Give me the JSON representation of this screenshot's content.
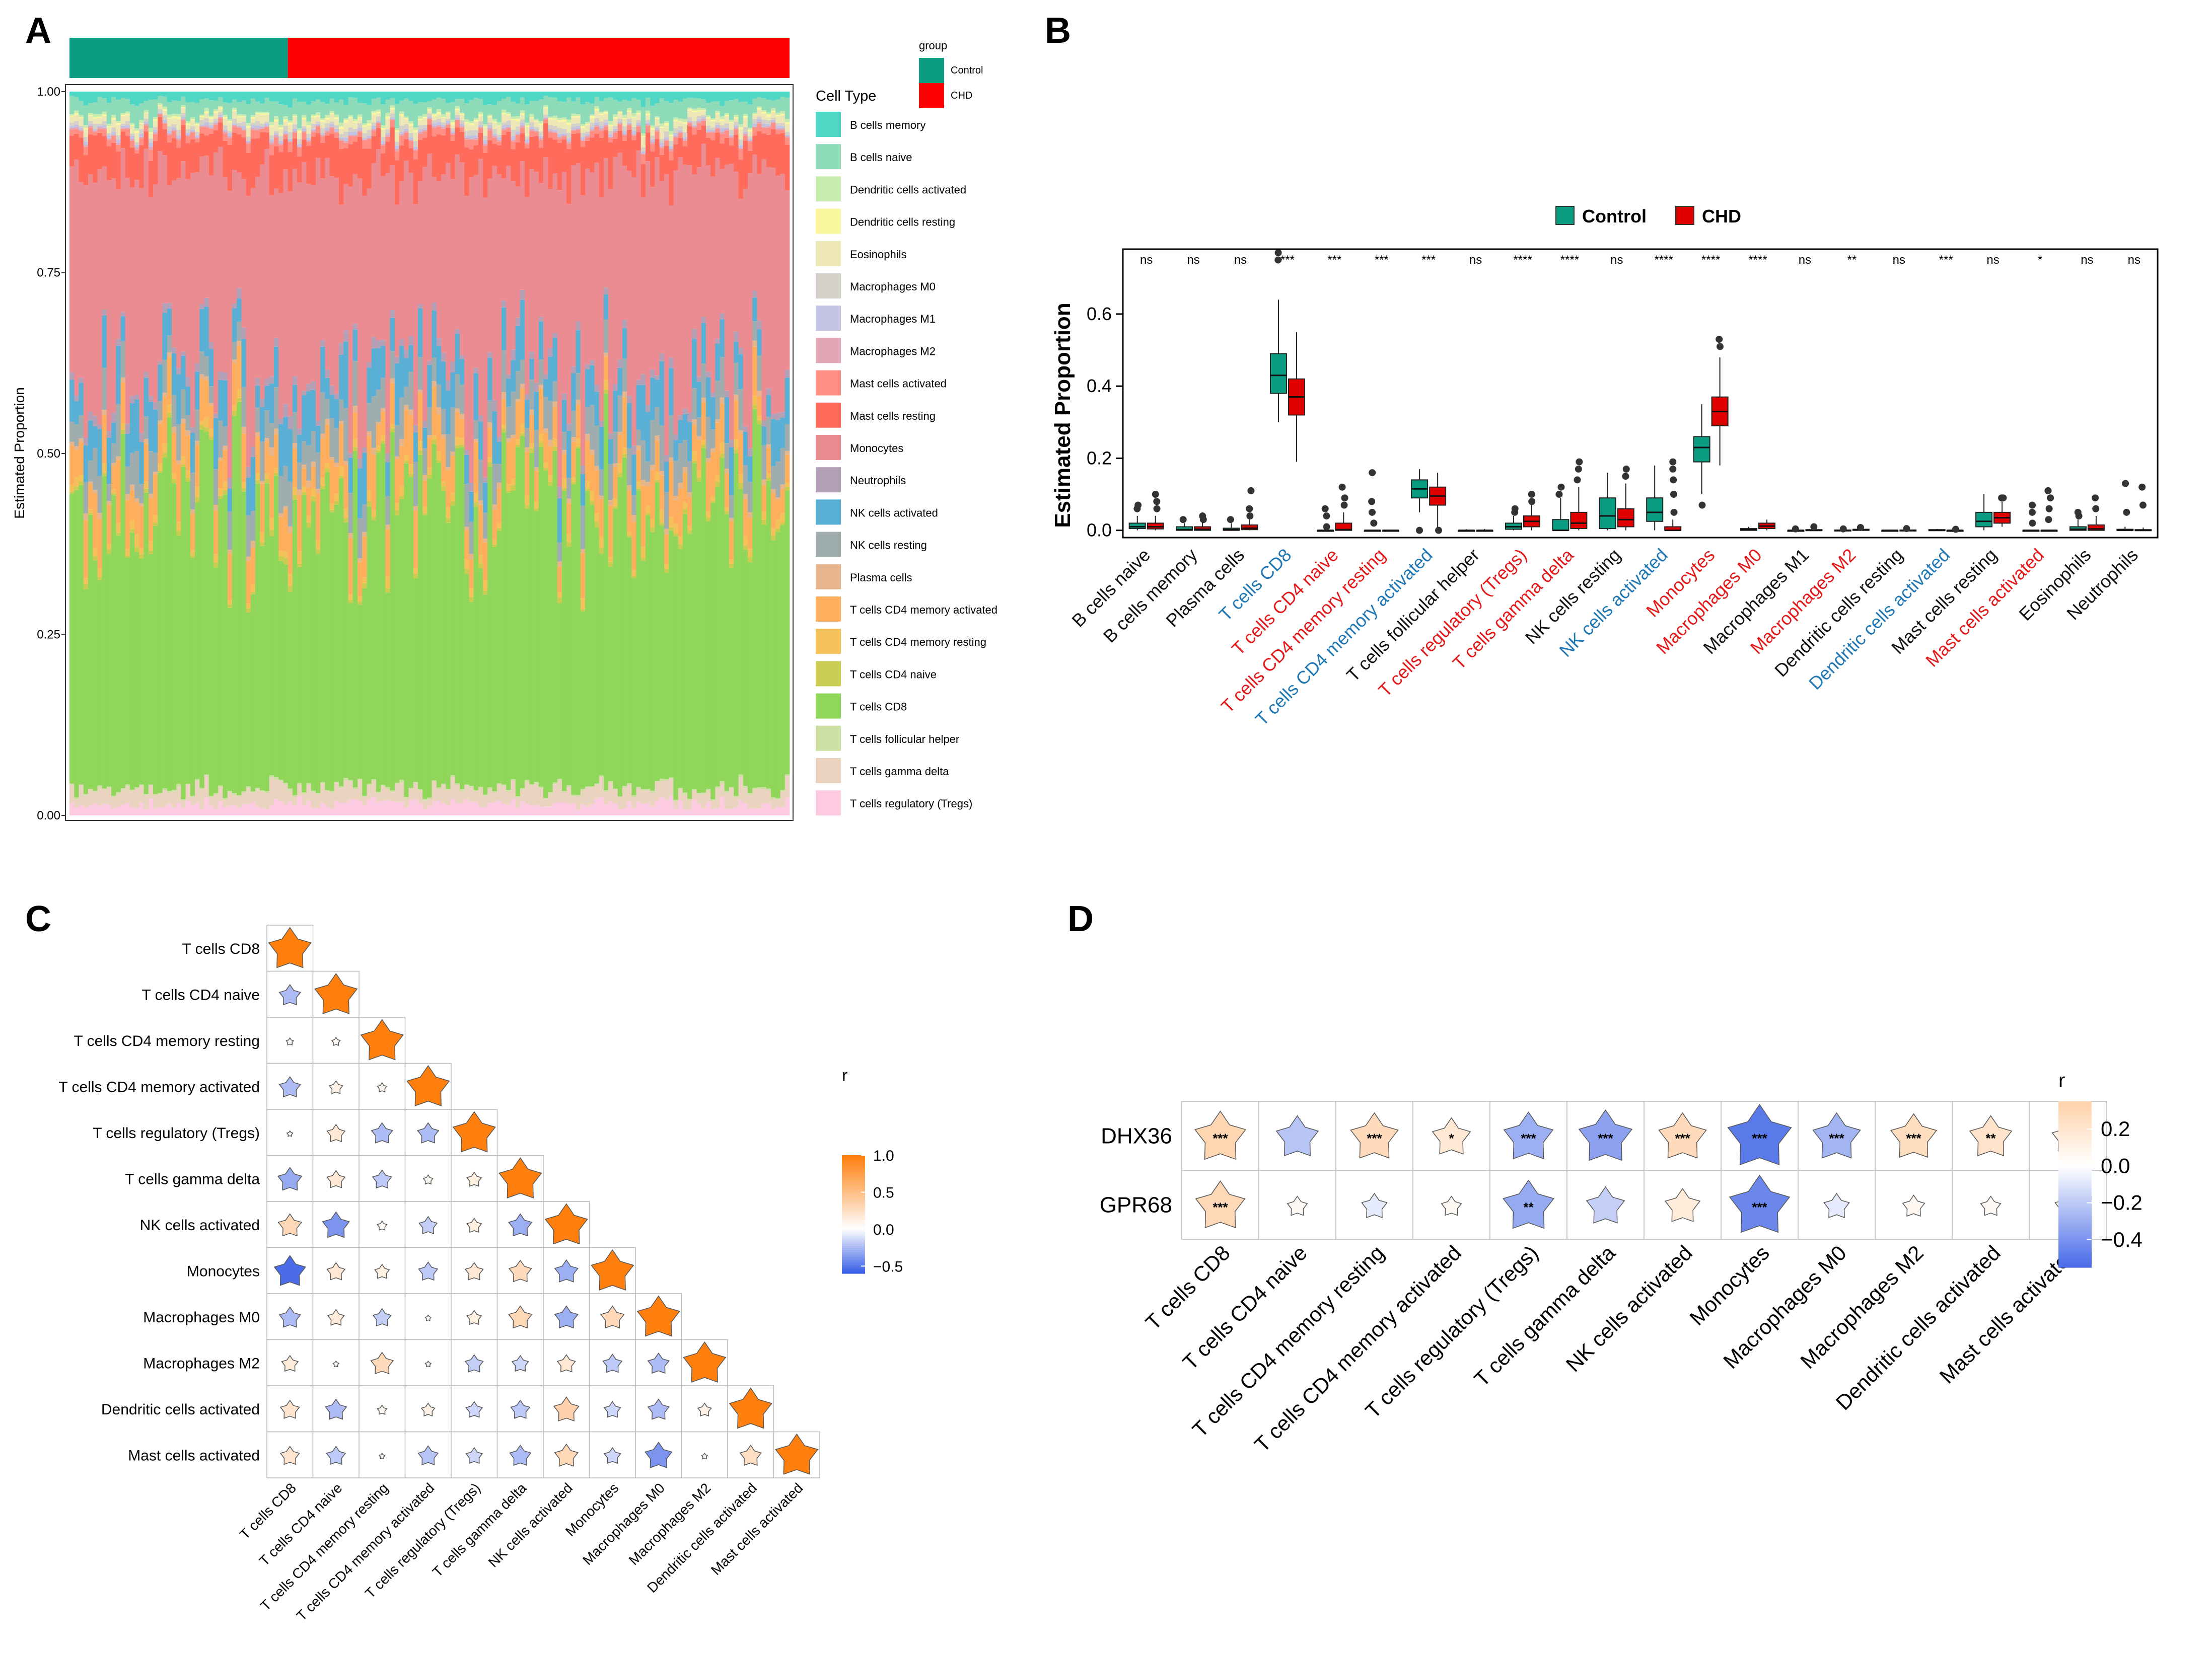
{
  "panels": {
    "a": "A",
    "b": "B",
    "c": "C",
    "d": "D"
  },
  "colors": {
    "control": "#0b9d82",
    "chd": "#ff0000",
    "blue_label": "#1f78b4",
    "red_label": "#e31a1c",
    "neg": "#2d5fe8",
    "pos": "#ff7f0e"
  },
  "chart_data": [
    {
      "id": "A",
      "type": "bar",
      "stacked": true,
      "xlabel": "",
      "ylabel": "Estimated Proportion",
      "ylim": [
        0,
        1
      ],
      "yticks": [
        "0.00",
        "0.25",
        "0.50",
        "0.75",
        "1.00"
      ],
      "n_samples": 155,
      "group_legend": {
        "title": "group",
        "items": [
          "Control",
          "CHD"
        ],
        "control_count": 47,
        "chd_count": 108
      },
      "legend_title": "Cell Type",
      "series": [
        {
          "name": "B cells memory",
          "color": "#4fd6c4",
          "mean": 0.012
        },
        {
          "name": "B cells naive",
          "color": "#8ddbb9",
          "mean": 0.02
        },
        {
          "name": "Dendritic cells activated",
          "color": "#c8ebb0",
          "mean": 0.003
        },
        {
          "name": "Dendritic cells resting",
          "color": "#fbf7a0",
          "mean": 0.002
        },
        {
          "name": "Eosinophils",
          "color": "#ece7b5",
          "mean": 0.008
        },
        {
          "name": "Macrophages M0",
          "color": "#d5d1c8",
          "mean": 0.005
        },
        {
          "name": "Macrophages M1",
          "color": "#c2c2e2",
          "mean": 0.003
        },
        {
          "name": "Macrophages M2",
          "color": "#e2a7b7",
          "mean": 0.002
        },
        {
          "name": "Mast cells activated",
          "color": "#ff8e84",
          "mean": 0.008
        },
        {
          "name": "Mast cells resting",
          "color": "#ff6c5c",
          "mean": 0.045
        },
        {
          "name": "Monocytes",
          "color": "#eb8c93",
          "mean": 0.27
        },
        {
          "name": "Neutrophils",
          "color": "#b4a1b8",
          "mean": 0.01
        },
        {
          "name": "NK cells activated",
          "color": "#5aafd4",
          "mean": 0.05
        },
        {
          "name": "NK cells resting",
          "color": "#9fadae",
          "mean": 0.04
        },
        {
          "name": "Plasma cells",
          "color": "#e6b58b",
          "mean": 0.006
        },
        {
          "name": "T cells CD4 memory activated",
          "color": "#ffae5d",
          "mean": 0.05
        },
        {
          "name": "T cells CD4 memory resting",
          "color": "#f4c059",
          "mean": 0.01
        },
        {
          "name": "T cells CD4 naive",
          "color": "#c9cc50",
          "mean": 0.005
        },
        {
          "name": "T cells CD8",
          "color": "#8fd65b",
          "mean": 0.38
        },
        {
          "name": "T cells follicular helper",
          "color": "#cde0a4",
          "mean": 0.002
        },
        {
          "name": "T cells gamma delta",
          "color": "#ead4bf",
          "mean": 0.02
        },
        {
          "name": "T cells regulatory (Tregs)",
          "color": "#fccbe2",
          "mean": 0.015
        }
      ]
    },
    {
      "id": "B",
      "type": "box",
      "ylabel": "Estimated Proportion",
      "ylim": [
        -0.02,
        0.78
      ],
      "yticks": [
        "0.0",
        "0.2",
        "0.4",
        "0.6"
      ],
      "legend": [
        "Control",
        "CHD"
      ],
      "categories": [
        {
          "name": "B cells naive",
          "sig": "ns",
          "label_color": "black",
          "control": [
            0.0,
            0.005,
            0.01,
            0.02,
            0.04
          ],
          "chd": [
            0.0,
            0.004,
            0.01,
            0.02,
            0.04
          ],
          "out_control": [
            0.06,
            0.07
          ],
          "out_chd": [
            0.06,
            0.08,
            0.1
          ]
        },
        {
          "name": "B cells memory",
          "sig": "ns",
          "label_color": "black",
          "control": [
            0,
            0,
            0.002,
            0.01,
            0.02
          ],
          "chd": [
            0,
            0,
            0.003,
            0.01,
            0.03
          ],
          "out_control": [
            0.03
          ],
          "out_chd": [
            0.03,
            0.04
          ]
        },
        {
          "name": "Plasma cells",
          "sig": "ns",
          "label_color": "black",
          "control": [
            0,
            0,
            0.002,
            0.006,
            0.02
          ],
          "chd": [
            0,
            0.002,
            0.006,
            0.015,
            0.03
          ],
          "out_control": [
            0.03
          ],
          "out_chd": [
            0.04,
            0.06,
            0.11
          ]
        },
        {
          "name": "T cells CD8",
          "sig": "***",
          "label_color": "blue",
          "control": [
            0.3,
            0.38,
            0.43,
            0.49,
            0.64
          ],
          "chd": [
            0.19,
            0.32,
            0.37,
            0.42,
            0.55
          ],
          "out_control": [
            0.75,
            0.77
          ],
          "out_chd": []
        },
        {
          "name": "T cells CD4 naive",
          "sig": "***",
          "label_color": "red",
          "control": [
            0,
            0,
            0,
            0,
            0
          ],
          "chd": [
            0,
            0,
            0.002,
            0.02,
            0.05
          ],
          "out_control": [
            0.01,
            0.04,
            0.06
          ],
          "out_chd": [
            0.07,
            0.09,
            0.12
          ]
        },
        {
          "name": "T cells CD4 memory resting",
          "sig": "***",
          "label_color": "red",
          "control": [
            0,
            0,
            0,
            0,
            0
          ],
          "chd": [
            0,
            0,
            0,
            0,
            0
          ],
          "out_control": [
            0.02,
            0.05,
            0.08,
            0.16
          ],
          "out_chd": []
        },
        {
          "name": "T cells CD4 memory activated",
          "sig": "***",
          "label_color": "blue",
          "control": [
            0.05,
            0.09,
            0.115,
            0.14,
            0.17
          ],
          "chd": [
            0.0,
            0.07,
            0.095,
            0.12,
            0.16
          ],
          "out_control": [
            0.0
          ],
          "out_chd": [
            0.0
          ]
        },
        {
          "name": "T cells follicular helper",
          "sig": "ns",
          "label_color": "black",
          "control": [
            0,
            0,
            0,
            0,
            0.003
          ],
          "chd": [
            0,
            0,
            0,
            0,
            0.004
          ],
          "out_control": [],
          "out_chd": []
        },
        {
          "name": "T cells regulatory (Tregs)",
          "sig": "****",
          "label_color": "red",
          "control": [
            0,
            0.003,
            0.01,
            0.02,
            0.04
          ],
          "chd": [
            0,
            0.01,
            0.025,
            0.04,
            0.07
          ],
          "out_control": [
            0.05,
            0.06
          ],
          "out_chd": [
            0.08,
            0.1
          ]
        },
        {
          "name": "T cells gamma delta",
          "sig": "****",
          "label_color": "red",
          "control": [
            0,
            0,
            0,
            0.03,
            0.09
          ],
          "chd": [
            0,
            0.005,
            0.02,
            0.05,
            0.12
          ],
          "out_control": [
            0.1,
            0.12
          ],
          "out_chd": [
            0.14,
            0.17,
            0.19
          ]
        },
        {
          "name": "NK cells resting",
          "sig": "ns",
          "label_color": "black",
          "control": [
            0,
            0.005,
            0.04,
            0.09,
            0.16
          ],
          "chd": [
            0,
            0.01,
            0.03,
            0.06,
            0.13
          ],
          "out_control": [],
          "out_chd": [
            0.15,
            0.17
          ]
        },
        {
          "name": "NK cells activated",
          "sig": "****",
          "label_color": "blue",
          "control": [
            0,
            0.025,
            0.05,
            0.09,
            0.18
          ],
          "chd": [
            0,
            0,
            0,
            0.01,
            0.03
          ],
          "out_control": [],
          "out_chd": [
            0.05,
            0.1,
            0.14,
            0.17,
            0.19
          ]
        },
        {
          "name": "Monocytes",
          "sig": "****",
          "label_color": "red",
          "control": [
            0.1,
            0.19,
            0.23,
            0.26,
            0.35
          ],
          "chd": [
            0.18,
            0.29,
            0.33,
            0.37,
            0.48
          ],
          "out_control": [
            0.07
          ],
          "out_chd": [
            0.51,
            0.53
          ]
        },
        {
          "name": "Macrophages M0",
          "sig": "****",
          "label_color": "red",
          "control": [
            0,
            0,
            0.002,
            0.005,
            0.01
          ],
          "chd": [
            0,
            0.005,
            0.012,
            0.02,
            0.03
          ],
          "out_control": [],
          "out_chd": []
        },
        {
          "name": "Macrophages M1",
          "sig": "ns",
          "label_color": "black",
          "control": [
            0,
            0,
            0,
            0,
            0.003
          ],
          "chd": [
            0,
            0,
            0,
            0.002,
            0.006
          ],
          "out_control": [
            0.004
          ],
          "out_chd": [
            0.01
          ]
        },
        {
          "name": "Macrophages M2",
          "sig": "**",
          "label_color": "red",
          "control": [
            0,
            0,
            0,
            0.001,
            0.003
          ],
          "chd": [
            0,
            0,
            0.001,
            0.003,
            0.006
          ],
          "out_control": [
            0.004
          ],
          "out_chd": [
            0.008
          ]
        },
        {
          "name": "Dendritic cells resting",
          "sig": "ns",
          "label_color": "black",
          "control": [
            0,
            0,
            0,
            0,
            0.002
          ],
          "chd": [
            0,
            0,
            0,
            0.001,
            0.004
          ],
          "out_control": [],
          "out_chd": [
            0.005
          ]
        },
        {
          "name": "Dendritic cells activated",
          "sig": "***",
          "label_color": "blue",
          "control": [
            0,
            0,
            0,
            0.002,
            0.004
          ],
          "chd": [
            0,
            0,
            0,
            0,
            0.001
          ],
          "out_control": [],
          "out_chd": [
            0.003
          ]
        },
        {
          "name": "Mast cells resting",
          "sig": "ns",
          "label_color": "black",
          "control": [
            0,
            0.01,
            0.025,
            0.05,
            0.1
          ],
          "chd": [
            0.01,
            0.02,
            0.035,
            0.05,
            0.08
          ],
          "out_control": [],
          "out_chd": [
            0.09,
            0.09
          ]
        },
        {
          "name": "Mast cells activated",
          "sig": "*",
          "label_color": "red",
          "control": [
            0,
            0,
            0,
            0,
            0
          ],
          "chd": [
            0,
            0,
            0,
            0,
            0
          ],
          "out_control": [
            0.02,
            0.05,
            0.07
          ],
          "out_chd": [
            0.03,
            0.06,
            0.09,
            0.11
          ]
        },
        {
          "name": "Eosinophils",
          "sig": "ns",
          "label_color": "black",
          "control": [
            0,
            0,
            0.003,
            0.01,
            0.03
          ],
          "chd": [
            0,
            0,
            0.004,
            0.015,
            0.04
          ],
          "out_control": [
            0.04,
            0.05
          ],
          "out_chd": [
            0.06,
            0.09
          ]
        },
        {
          "name": "Neutrophils",
          "sig": "ns",
          "label_color": "black",
          "control": [
            0,
            0,
            0,
            0.003,
            0.01
          ],
          "chd": [
            0,
            0,
            0,
            0.002,
            0.008
          ],
          "out_control": [
            0.05,
            0.13
          ],
          "out_chd": [
            0.07,
            0.12
          ]
        }
      ]
    },
    {
      "id": "C",
      "type": "heatmap",
      "shape": "star",
      "triangle": "lower",
      "labels": [
        "T cells CD8",
        "T cells CD4 naive",
        "T cells CD4 memory resting",
        "T cells CD4 memory activated",
        "T cells regulatory (Tregs)",
        "T cells gamma delta",
        "NK cells activated",
        "Monocytes",
        "Macrophages M0",
        "Macrophages M2",
        "Dendritic cells activated",
        "Mast cells activated"
      ],
      "legend": {
        "title": "r",
        "ticks": [
          "1.0",
          "0.5",
          "0.0",
          "−0.5"
        ],
        "range": [
          -0.6,
          1
        ]
      },
      "matrix": [
        [
          1
        ],
        [
          -0.25,
          1
        ],
        [
          0.03,
          0.04,
          1
        ],
        [
          -0.25,
          0.1,
          0.05,
          1
        ],
        [
          0.0,
          0.18,
          -0.25,
          -0.25,
          1
        ],
        [
          -0.32,
          0.18,
          -0.2,
          0.05,
          0.12,
          1
        ],
        [
          0.3,
          -0.4,
          0.05,
          -0.18,
          0.12,
          -0.3,
          1
        ],
        [
          -0.55,
          0.18,
          0.12,
          -0.2,
          0.18,
          0.28,
          -0.3,
          1
        ],
        [
          -0.25,
          0.15,
          -0.18,
          0.0,
          0.12,
          0.3,
          -0.3,
          0.3,
          1
        ],
        [
          0.15,
          0.0,
          0.28,
          0.0,
          -0.18,
          -0.15,
          0.18,
          -0.2,
          -0.25,
          1
        ],
        [
          0.2,
          -0.25,
          0.05,
          0.1,
          -0.15,
          -0.2,
          0.35,
          -0.15,
          -0.25,
          0.1,
          1
        ],
        [
          0.2,
          -0.2,
          0.0,
          -0.22,
          -0.15,
          -0.25,
          0.3,
          -0.15,
          -0.4,
          0.0,
          0.25,
          1
        ]
      ]
    },
    {
      "id": "D",
      "type": "heatmap",
      "shape": "star",
      "rows": [
        "DHX36",
        "GPR68"
      ],
      "cols": [
        "T cells CD8",
        "T cells CD4 naive",
        "T cells CD4 memory resting",
        "T cells CD4 memory activated",
        "T cells regulatory (Tregs)",
        "T cells gamma delta",
        "NK cells activated",
        "Monocytes",
        "Macrophages M0",
        "Macrophages M2",
        "Dendritic cells activated",
        "Mast cells activated"
      ],
      "values": [
        [
          0.32,
          -0.22,
          0.28,
          0.18,
          -0.3,
          -0.35,
          0.28,
          -0.5,
          -0.28,
          0.26,
          0.22,
          0.12
        ],
        [
          0.3,
          0.05,
          -0.08,
          0.05,
          -0.32,
          -0.18,
          0.15,
          -0.45,
          -0.08,
          0.06,
          0.05,
          0.08
        ]
      ],
      "sig": [
        [
          "***",
          "",
          "***",
          "*",
          "***",
          "***",
          "***",
          "***",
          "***",
          "***",
          "**",
          ""
        ],
        [
          "***",
          "",
          "",
          "",
          "**",
          "",
          "",
          "***",
          "",
          "",
          "",
          ""
        ]
      ],
      "legend": {
        "title": "r",
        "ticks": [
          "0.2",
          "0.0",
          "−0.2",
          "−0.4"
        ],
        "range": [
          -0.55,
          0.35
        ]
      }
    }
  ]
}
